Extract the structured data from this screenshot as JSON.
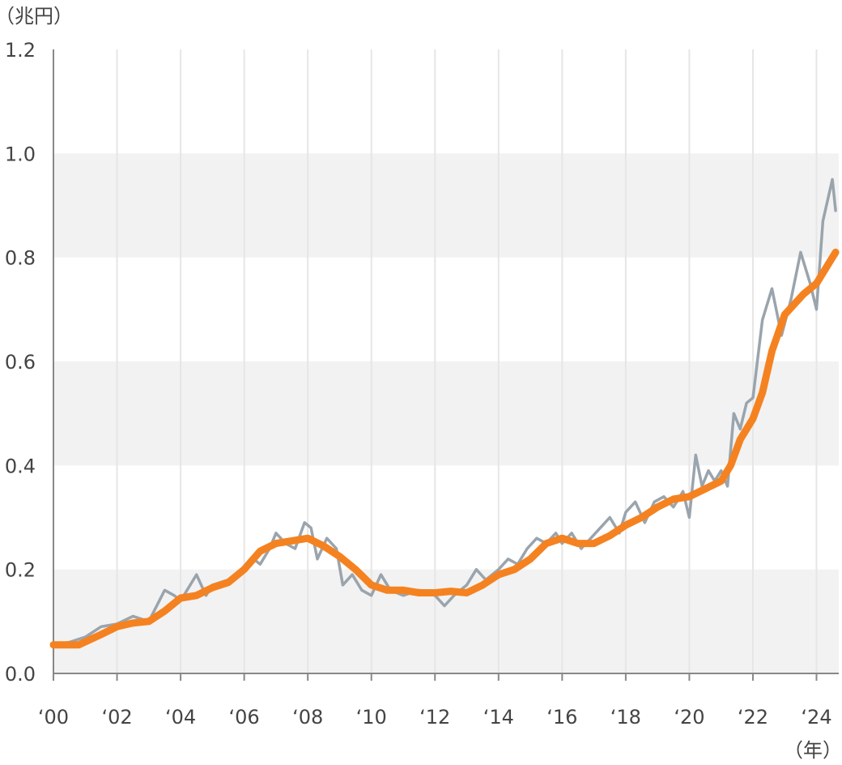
{
  "chart_data": {
    "type": "line",
    "title": "",
    "ylabel": "（兆円）",
    "xlabel": "（年）",
    "ylim": [
      0.0,
      1.2
    ],
    "xlim": [
      2000,
      2024.7
    ],
    "y_ticks": [
      "0.0",
      "0.2",
      "0.4",
      "0.6",
      "0.8",
      "1.0",
      "1.2"
    ],
    "x_ticks": [
      "‘00",
      "‘02",
      "‘04",
      "‘06",
      "‘08",
      "‘10",
      "‘12",
      "‘14",
      "‘16",
      "‘18",
      "‘20",
      "‘22",
      "‘24"
    ],
    "grid": "vertical lines at each year tick; alternating light-gray horizontal bands",
    "colors": {
      "monthly": "#9aa4ad",
      "trend": "#f58220",
      "band": "#f2f2f2",
      "axis": "#888888",
      "text": "#444444"
    },
    "series": [
      {
        "x": [
          2000.0,
          2000.5,
          2001.0,
          2001.5,
          2002.0,
          2002.5,
          2003.0,
          2003.25,
          2003.5,
          2003.8,
          2004.0,
          2004.3,
          2004.5,
          2004.8,
          2005.0,
          2005.5,
          2006.0,
          2006.3,
          2006.5,
          2006.8,
          2007.0,
          2007.3,
          2007.6,
          2007.9,
          2008.1,
          2008.3,
          2008.6,
          2008.9,
          2009.1,
          2009.4,
          2009.7,
          2010.0,
          2010.3,
          2010.6,
          2011.0,
          2011.5,
          2012.0,
          2012.3,
          2012.6,
          2013.0,
          2013.3,
          2013.6,
          2014.0,
          2014.3,
          2014.6,
          2014.9,
          2015.2,
          2015.5,
          2015.8,
          2016.0,
          2016.3,
          2016.6,
          2016.9,
          2017.2,
          2017.5,
          2017.8,
          2018.0,
          2018.3,
          2018.6,
          2018.9,
          2019.2,
          2019.5,
          2019.8,
          2020.0,
          2020.2,
          2020.4,
          2020.6,
          2020.8,
          2021.0,
          2021.2,
          2021.4,
          2021.6,
          2021.8,
          2022.0,
          2022.3,
          2022.6,
          2022.9,
          2023.2,
          2023.5,
          2023.8,
          2024.0,
          2024.2,
          2024.5,
          2024.6
        ],
        "values": [
          0.055,
          0.06,
          0.07,
          0.09,
          0.095,
          0.11,
          0.1,
          0.13,
          0.16,
          0.15,
          0.14,
          0.17,
          0.19,
          0.15,
          0.17,
          0.18,
          0.2,
          0.22,
          0.21,
          0.24,
          0.27,
          0.25,
          0.24,
          0.29,
          0.28,
          0.22,
          0.26,
          0.24,
          0.17,
          0.19,
          0.16,
          0.15,
          0.19,
          0.16,
          0.15,
          0.16,
          0.15,
          0.13,
          0.15,
          0.17,
          0.2,
          0.18,
          0.2,
          0.22,
          0.21,
          0.24,
          0.26,
          0.25,
          0.27,
          0.25,
          0.27,
          0.24,
          0.26,
          0.28,
          0.3,
          0.27,
          0.31,
          0.33,
          0.29,
          0.33,
          0.34,
          0.32,
          0.35,
          0.3,
          0.42,
          0.36,
          0.39,
          0.37,
          0.39,
          0.36,
          0.5,
          0.47,
          0.52,
          0.53,
          0.68,
          0.74,
          0.65,
          0.72,
          0.81,
          0.75,
          0.7,
          0.87,
          0.95,
          0.89
        ]
      },
      {
        "x": [
          2000.0,
          2000.8,
          2001.5,
          2002.0,
          2002.5,
          2003.0,
          2003.5,
          2004.0,
          2004.5,
          2005.0,
          2005.5,
          2006.0,
          2006.5,
          2007.0,
          2007.5,
          2008.0,
          2008.5,
          2009.0,
          2009.5,
          2010.0,
          2010.5,
          2011.0,
          2011.5,
          2012.0,
          2012.5,
          2013.0,
          2013.5,
          2014.0,
          2014.5,
          2015.0,
          2015.5,
          2016.0,
          2016.5,
          2017.0,
          2017.5,
          2018.0,
          2018.5,
          2019.0,
          2019.5,
          2020.0,
          2020.5,
          2021.0,
          2021.3,
          2021.6,
          2022.0,
          2022.3,
          2022.6,
          2023.0,
          2023.3,
          2023.6,
          2024.0,
          2024.3,
          2024.6
        ],
        "values": [
          0.055,
          0.055,
          0.075,
          0.09,
          0.097,
          0.1,
          0.12,
          0.145,
          0.15,
          0.165,
          0.175,
          0.2,
          0.235,
          0.25,
          0.255,
          0.26,
          0.245,
          0.225,
          0.2,
          0.17,
          0.16,
          0.16,
          0.155,
          0.155,
          0.158,
          0.155,
          0.17,
          0.19,
          0.2,
          0.22,
          0.25,
          0.26,
          0.25,
          0.25,
          0.265,
          0.285,
          0.3,
          0.32,
          0.335,
          0.34,
          0.355,
          0.37,
          0.4,
          0.45,
          0.49,
          0.54,
          0.62,
          0.69,
          0.71,
          0.73,
          0.75,
          0.78,
          0.81
        ]
      }
    ]
  }
}
